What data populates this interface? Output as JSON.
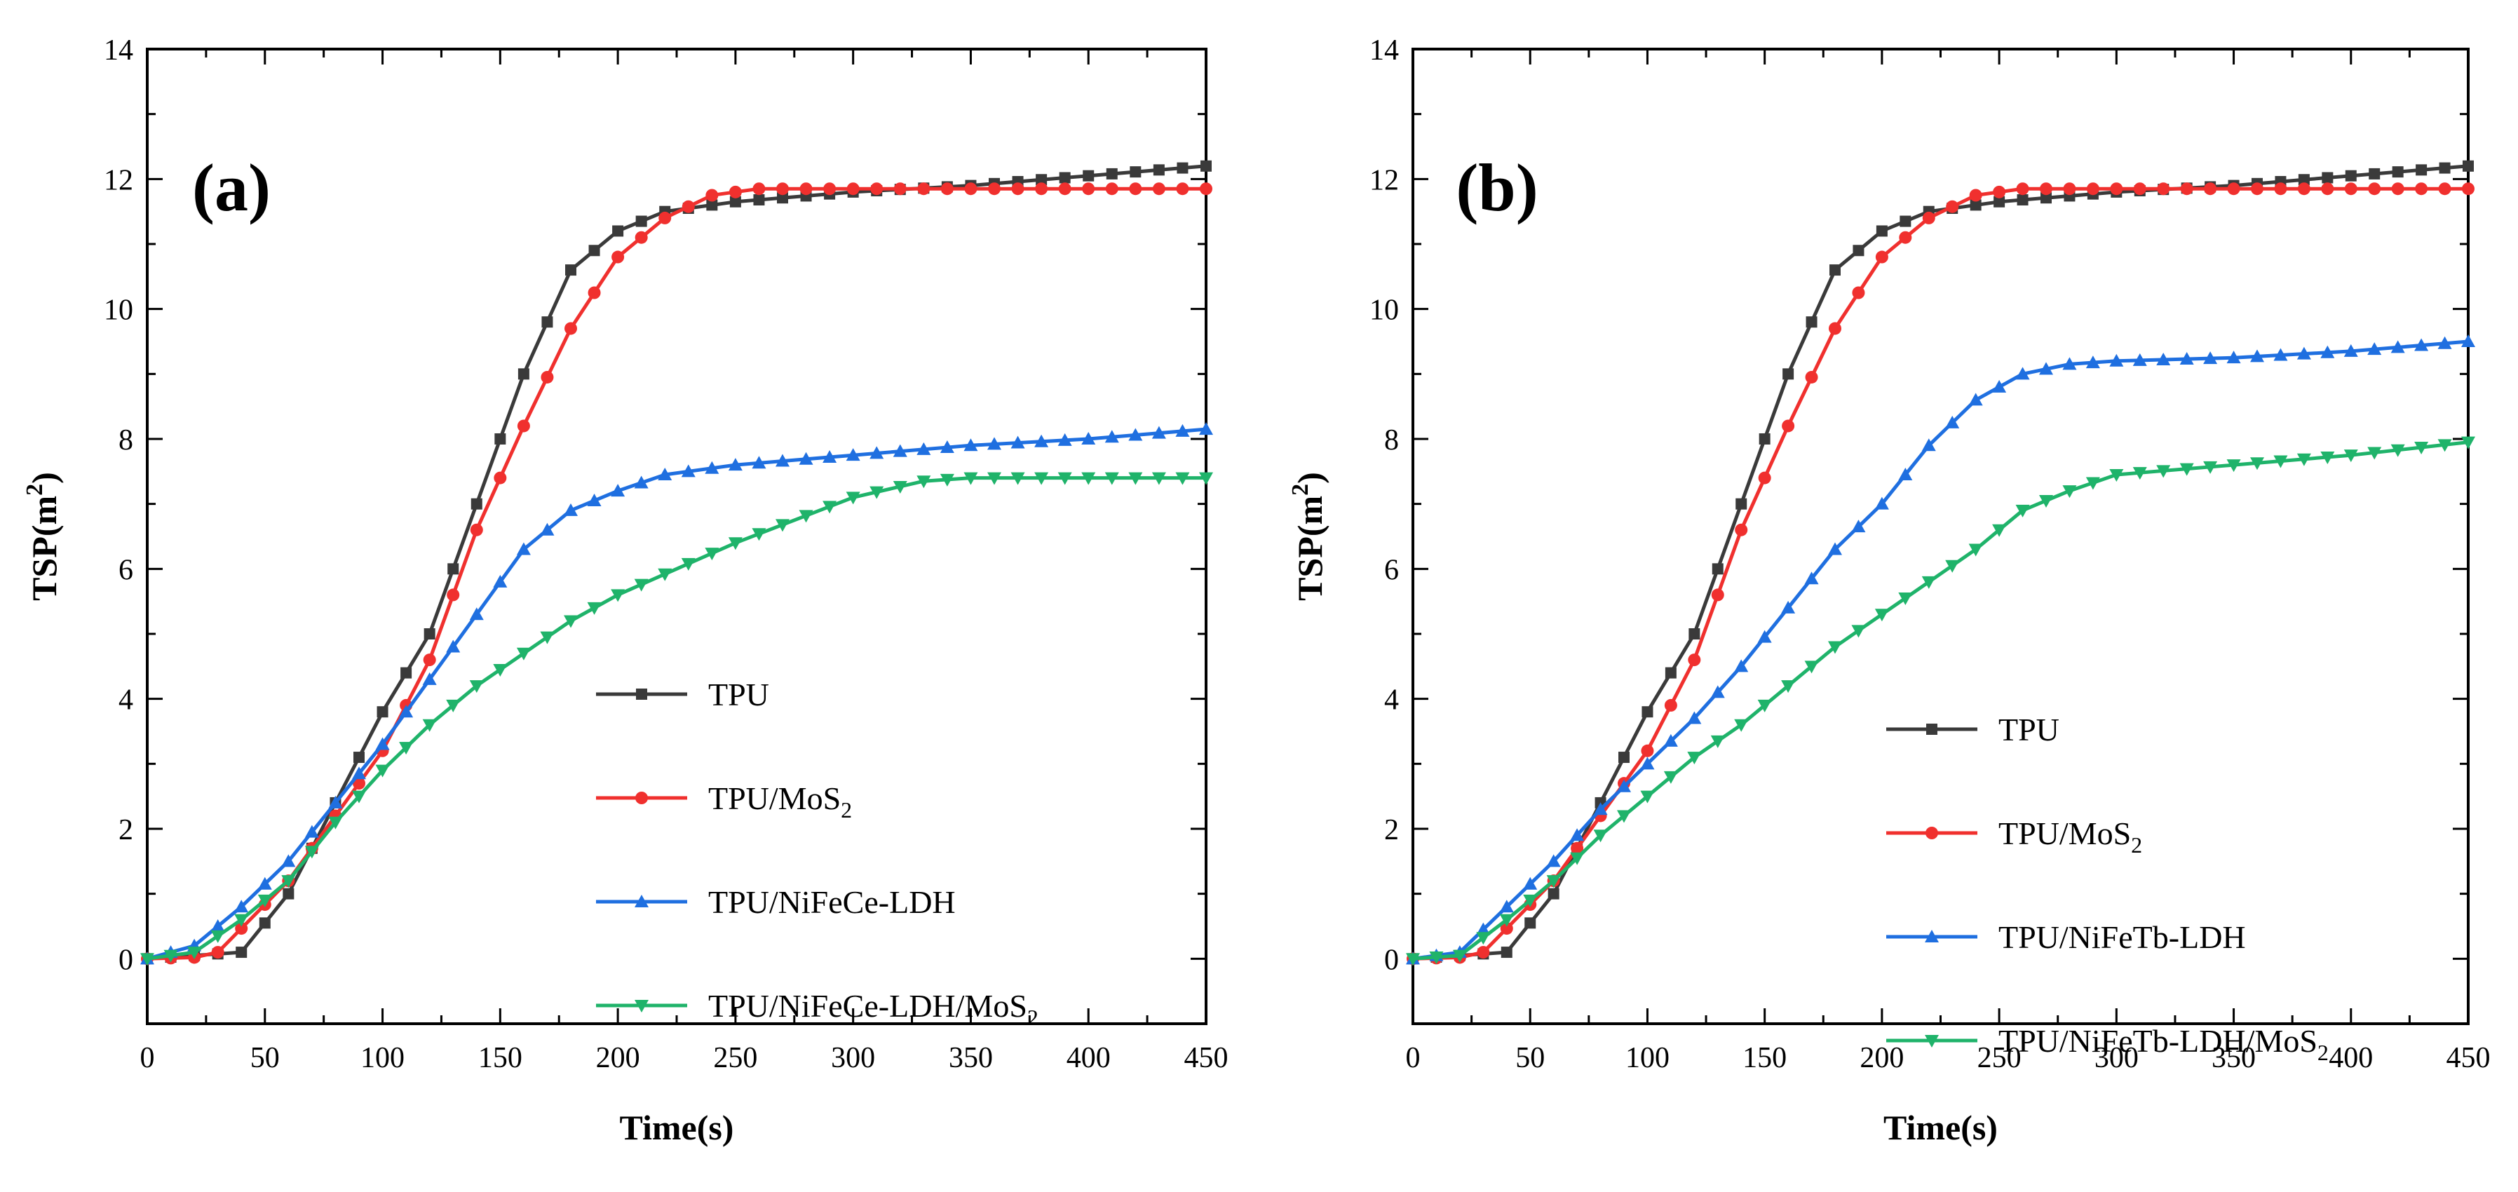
{
  "colors": {
    "TPU": "#3a3a3a",
    "TPU/MoS2": "#f0302e",
    "NiFe-LDH": "#1f6fe0",
    "NiFe-LDH/MoS2": "#1fb36a"
  },
  "chart_data": [
    {
      "type": "line",
      "panel_label": "(a)",
      "xlabel": "Time(s)",
      "ylabel_base": "TSP(m",
      "ylabel_sup": "2",
      "ylabel_end": ")",
      "xlim": [
        0,
        450
      ],
      "ylim": [
        -1,
        14
      ],
      "x_ticks": [
        0,
        50,
        100,
        150,
        200,
        250,
        300,
        350,
        400,
        450
      ],
      "y_ticks": [
        0,
        2,
        4,
        6,
        8,
        10,
        12,
        14
      ],
      "legend_position": "lower-right",
      "series": [
        {
          "name": "TPU",
          "legend_text": "TPU",
          "legend_sub": "",
          "legend_post": "",
          "color_key": "TPU",
          "marker": "square",
          "x": [
            0,
            20,
            40,
            60,
            80,
            100,
            120,
            140,
            160,
            180,
            200,
            220,
            250,
            300,
            350,
            400,
            450
          ],
          "y": [
            0,
            0.05,
            0.1,
            1.0,
            2.4,
            3.8,
            5.0,
            7.0,
            9.0,
            10.6,
            11.2,
            11.5,
            11.65,
            11.8,
            11.9,
            12.05,
            12.2
          ]
        },
        {
          "name": "TPU/MoS2",
          "legend_text": "TPU/MoS",
          "legend_sub": "2",
          "legend_post": "",
          "color_key": "TPU/MoS2",
          "marker": "circle",
          "x": [
            0,
            20,
            30,
            60,
            80,
            100,
            120,
            140,
            160,
            180,
            200,
            220,
            240,
            260,
            300,
            350,
            400,
            450
          ],
          "y": [
            0,
            0.02,
            0.1,
            1.2,
            2.2,
            3.2,
            4.6,
            6.6,
            8.2,
            9.7,
            10.8,
            11.4,
            11.75,
            11.85,
            11.85,
            11.85,
            11.85,
            11.85
          ]
        },
        {
          "name": "TPU/NiFeCe-LDH",
          "legend_text": "TPU/NiFeCe-LDH",
          "legend_sub": "",
          "legend_post": "",
          "color_key": "NiFe-LDH",
          "marker": "triangle-up",
          "x": [
            0,
            20,
            40,
            60,
            80,
            100,
            120,
            140,
            160,
            180,
            200,
            220,
            250,
            300,
            350,
            400,
            450
          ],
          "y": [
            0,
            0.2,
            0.8,
            1.5,
            2.4,
            3.3,
            4.3,
            5.3,
            6.3,
            6.9,
            7.2,
            7.45,
            7.6,
            7.75,
            7.9,
            8.0,
            8.15
          ]
        },
        {
          "name": "TPU/NiFeCe-LDH/MoS2",
          "legend_text": "TPU/NiFeCe-LDH/MoS",
          "legend_sub": "2",
          "legend_post": "",
          "color_key": "NiFe-LDH/MoS2",
          "marker": "triangle-down",
          "x": [
            0,
            20,
            40,
            60,
            80,
            100,
            120,
            140,
            160,
            180,
            200,
            250,
            300,
            330,
            350,
            400,
            450
          ],
          "y": [
            0,
            0.1,
            0.6,
            1.2,
            2.1,
            2.9,
            3.6,
            4.2,
            4.7,
            5.2,
            5.6,
            6.4,
            7.1,
            7.35,
            7.4,
            7.4,
            7.4
          ]
        }
      ]
    },
    {
      "type": "line",
      "panel_label": "(b)",
      "xlabel": "Time(s)",
      "ylabel_base": "TSP(m",
      "ylabel_sup": "2",
      "ylabel_end": ")",
      "xlim": [
        0,
        450
      ],
      "ylim": [
        -1,
        14
      ],
      "x_ticks": [
        0,
        50,
        100,
        150,
        200,
        250,
        300,
        350,
        400,
        450
      ],
      "y_ticks": [
        0,
        2,
        4,
        6,
        8,
        10,
        12,
        14
      ],
      "legend_position": "lower-right",
      "series": [
        {
          "name": "TPU",
          "legend_text": "TPU",
          "legend_sub": "",
          "legend_post": "",
          "color_key": "TPU",
          "marker": "square",
          "x": [
            0,
            20,
            40,
            60,
            80,
            100,
            120,
            140,
            160,
            180,
            200,
            220,
            250,
            300,
            350,
            400,
            450
          ],
          "y": [
            0,
            0.05,
            0.1,
            1.0,
            2.4,
            3.8,
            5.0,
            7.0,
            9.0,
            10.6,
            11.2,
            11.5,
            11.65,
            11.8,
            11.9,
            12.05,
            12.2
          ]
        },
        {
          "name": "TPU/MoS2",
          "legend_text": "TPU/MoS",
          "legend_sub": "2",
          "legend_post": "",
          "color_key": "TPU/MoS2",
          "marker": "circle",
          "x": [
            0,
            20,
            30,
            60,
            80,
            100,
            120,
            140,
            160,
            180,
            200,
            220,
            240,
            260,
            300,
            350,
            400,
            450
          ],
          "y": [
            0,
            0.02,
            0.1,
            1.2,
            2.2,
            3.2,
            4.6,
            6.6,
            8.2,
            9.7,
            10.8,
            11.4,
            11.75,
            11.85,
            11.85,
            11.85,
            11.85,
            11.85
          ]
        },
        {
          "name": "TPU/NiFeTb-LDH",
          "legend_text": "TPU/NiFeTb-LDH",
          "legend_sub": "",
          "legend_post": "",
          "color_key": "NiFe-LDH",
          "marker": "triangle-up",
          "x": [
            0,
            20,
            40,
            60,
            80,
            100,
            120,
            140,
            160,
            180,
            200,
            220,
            240,
            260,
            280,
            300,
            350,
            400,
            450
          ],
          "y": [
            0,
            0.1,
            0.8,
            1.5,
            2.3,
            3.0,
            3.7,
            4.5,
            5.4,
            6.3,
            7.0,
            7.9,
            8.6,
            9.0,
            9.15,
            9.2,
            9.25,
            9.35,
            9.5
          ]
        },
        {
          "name": "TPU/NiFeTb-LDH/MoS2",
          "legend_text": "TPU/NiFeTb-LDH/MoS",
          "legend_sub": "2",
          "legend_post": "",
          "color_key": "NiFe-LDH/MoS2",
          "marker": "triangle-down",
          "x": [
            0,
            20,
            40,
            60,
            80,
            100,
            120,
            140,
            160,
            180,
            200,
            220,
            240,
            260,
            280,
            300,
            350,
            400,
            450
          ],
          "y": [
            0,
            0.05,
            0.6,
            1.2,
            1.9,
            2.5,
            3.1,
            3.6,
            4.2,
            4.8,
            5.3,
            5.8,
            6.3,
            6.9,
            7.2,
            7.45,
            7.6,
            7.75,
            7.95
          ]
        }
      ]
    }
  ]
}
